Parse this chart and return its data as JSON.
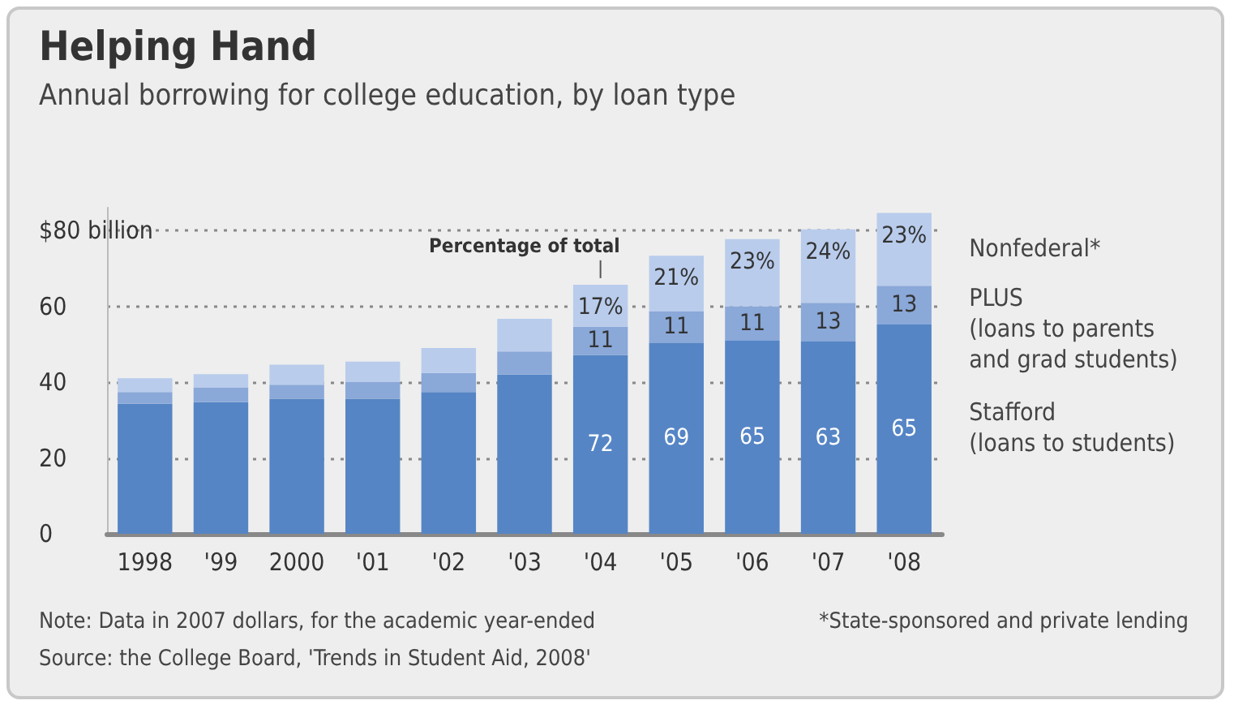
{
  "chart_data": {
    "type": "bar",
    "title": "Helping Hand",
    "subtitle": "Annual borrowing for college education, by loan type",
    "categories": [
      "1998",
      "'99",
      "2000",
      "'01",
      "'02",
      "'03",
      "'04",
      "'05",
      "'06",
      "'07",
      "'08"
    ],
    "stacked": true,
    "series": [
      {
        "name": "Stafford\n(loans to students)",
        "color": "#5585c5",
        "values": [
          34.3,
          34.7,
          35.6,
          35.6,
          37.4,
          42.0,
          47.1,
          50.3,
          50.9,
          50.7,
          55.2
        ]
      },
      {
        "name": "PLUS\n(loans to parents\nand grad students)",
        "color": "#8aa8d8",
        "values": [
          3.1,
          3.9,
          3.7,
          4.4,
          5.0,
          6.1,
          7.5,
          8.3,
          9.1,
          10.2,
          10.2
        ]
      },
      {
        "name": "Nonfederal*",
        "color": "#b9ccec",
        "values": [
          3.6,
          3.5,
          5.3,
          5.4,
          6.6,
          8.6,
          11.1,
          14.7,
          17.7,
          19.4,
          19.2
        ]
      }
    ],
    "ylim": [
      0,
      86
    ],
    "yticks": [
      0,
      20,
      40,
      60,
      {
        "value": 80,
        "label": "$80 billion"
      }
    ],
    "grid": "y",
    "legend": "right",
    "annotations": [
      {
        "text": "Percentage of total",
        "x": "'04",
        "y": 65.7
      },
      "72",
      "69",
      "65",
      "63",
      "65",
      {
        "text": "11",
        "x": "'04",
        "y": 54.6
      },
      {
        "text": "11",
        "x": "'05",
        "y": 58.6
      },
      {
        "text": "11",
        "x": "'06",
        "y": 60
      },
      {
        "text": "13",
        "x": "'07",
        "y": 60.9
      },
      {
        "text": "13",
        "x": "'08",
        "y": 65.4
      },
      {
        "text": "17%",
        "x": "'04",
        "y": 65.7
      },
      {
        "text": "21%",
        "x": "'05",
        "y": 73.3
      },
      {
        "text": "23%",
        "x": "'06",
        "y": 77.7
      },
      {
        "text": "24%",
        "x": "'07",
        "y": 80.3
      },
      {
        "text": "23%",
        "x": "'08",
        "y": 84.6
      },
      "Note: Data in 2007 dollars, for the academic year-ended",
      "*State-sponsored and private lending",
      "Source: the College Board, 'Trends in Student Aid, 2008'"
    ]
  }
}
